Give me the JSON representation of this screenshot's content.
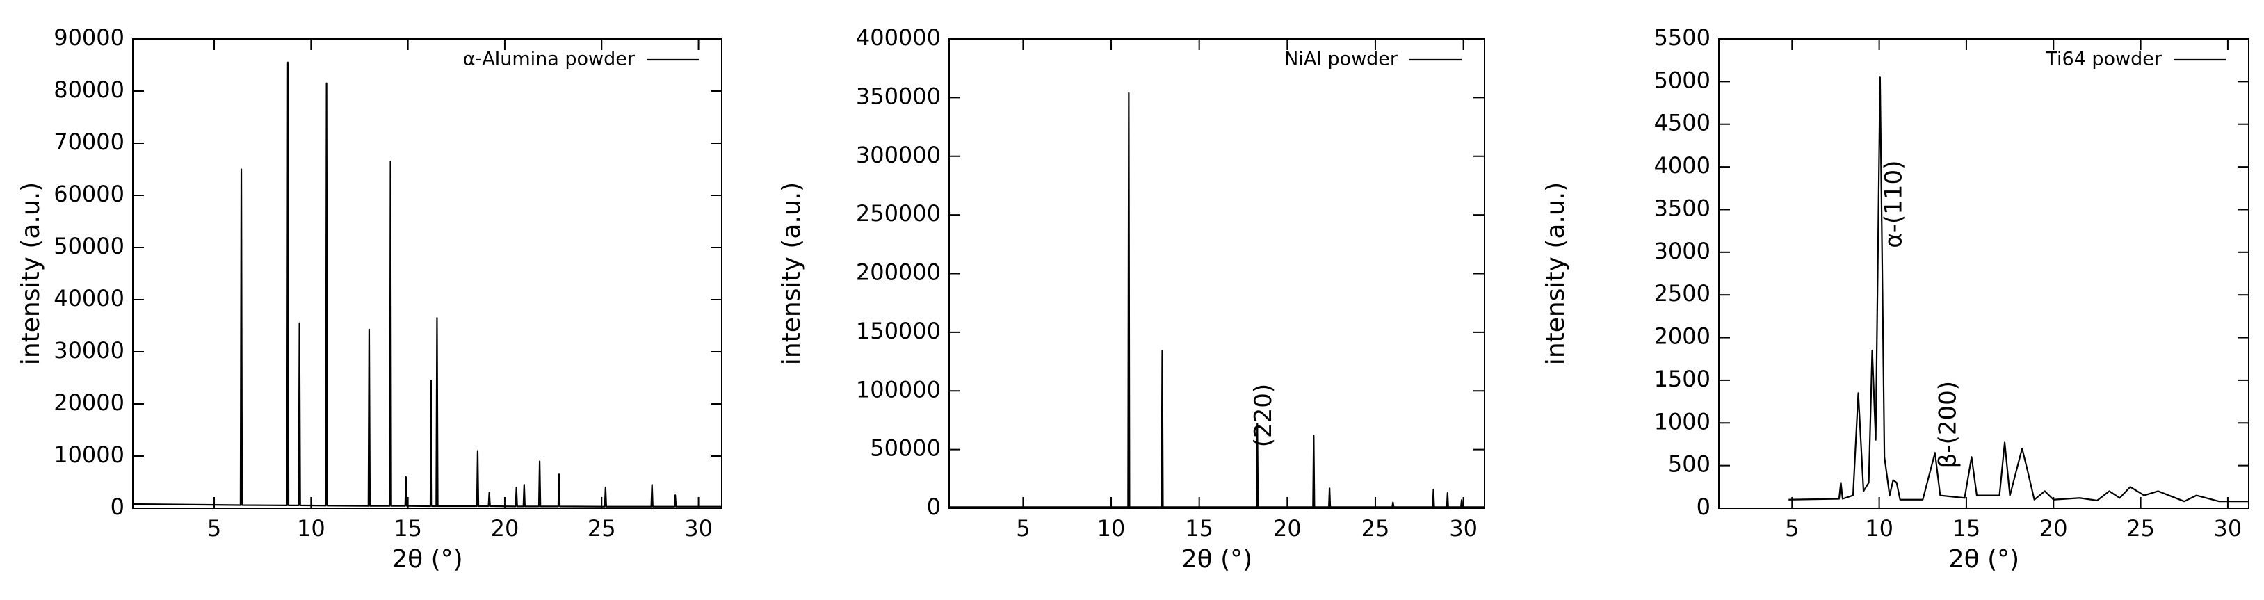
{
  "chart_data": [
    {
      "type": "line",
      "xlabel": "2θ (°)",
      "ylabel": "intensity (a.u.)",
      "xlim": [
        0.8,
        31.2
      ],
      "xticks": [
        5,
        10,
        15,
        20,
        25,
        30
      ],
      "ylim": [
        0,
        90000
      ],
      "yticks": [
        0,
        10000,
        20000,
        30000,
        40000,
        50000,
        60000,
        70000,
        80000,
        90000
      ],
      "legend": "top-right",
      "x": [
        0.8,
        6.36,
        6.4,
        6.44,
        8.76,
        8.8,
        8.84,
        9.36,
        9.4,
        9.44,
        10.76,
        10.8,
        10.84,
        12.96,
        13.0,
        13.04,
        14.06,
        14.1,
        14.14,
        14.86,
        14.9,
        14.94,
        16.16,
        16.2,
        16.24,
        16.46,
        16.5,
        16.54,
        18.56,
        18.6,
        18.64,
        19.16,
        19.2,
        19.24,
        20.56,
        20.6,
        20.64,
        20.96,
        21.0,
        21.04,
        21.76,
        21.8,
        21.84,
        22.76,
        22.8,
        22.84,
        25.16,
        25.2,
        25.24,
        27.56,
        27.6,
        27.64,
        28.76,
        28.8,
        28.84,
        31.2
      ],
      "series": [
        {
          "name": "α-Alumina powder",
          "color": "#000000",
          "values": [
            800,
            600,
            65000,
            600,
            550,
            85500,
            550,
            550,
            35500,
            550,
            500,
            81500,
            500,
            450,
            34300,
            450,
            450,
            66500,
            450,
            450,
            6000,
            450,
            400,
            24500,
            400,
            400,
            36500,
            400,
            400,
            11000,
            400,
            400,
            3000,
            400,
            350,
            4000,
            350,
            350,
            4500,
            350,
            350,
            9000,
            350,
            350,
            6500,
            350,
            300,
            4000,
            300,
            300,
            4500,
            300,
            300,
            2500,
            300,
            300
          ]
        }
      ]
    },
    {
      "type": "line",
      "xlabel": "2θ (°)",
      "ylabel": "intensity (a.u.)",
      "xlim": [
        0.8,
        31.2
      ],
      "xticks": [
        5,
        10,
        15,
        20,
        25,
        30
      ],
      "ylim": [
        0,
        400000
      ],
      "yticks": [
        0,
        50000,
        100000,
        150000,
        200000,
        250000,
        300000,
        350000,
        400000
      ],
      "legend": "top-right",
      "annotations": [
        {
          "text": "(220)",
          "x": 18.7,
          "y": 52000
        }
      ],
      "x": [
        0.8,
        10.96,
        11.0,
        11.04,
        12.86,
        12.9,
        12.94,
        18.26,
        18.3,
        18.34,
        21.46,
        21.5,
        21.54,
        22.36,
        22.4,
        22.44,
        25.96,
        26.0,
        26.04,
        28.26,
        28.3,
        28.34,
        29.06,
        29.1,
        29.14,
        29.86,
        29.9,
        29.94,
        31.2
      ],
      "series": [
        {
          "name": "NiAl powder",
          "color": "#000000",
          "values": [
            1000,
            1000,
            354000,
            1000,
            1000,
            134000,
            1000,
            1000,
            72000,
            1000,
            1000,
            62000,
            1000,
            1000,
            17000,
            1000,
            1000,
            5000,
            1000,
            1000,
            16000,
            1000,
            1000,
            13000,
            1000,
            1000,
            7000,
            1000,
            1000
          ]
        }
      ]
    },
    {
      "type": "line",
      "xlabel": "2θ (°)",
      "ylabel": "intensity (a.u.)",
      "xlim": [
        0.8,
        31.2
      ],
      "xticks": [
        5,
        10,
        15,
        20,
        25,
        30
      ],
      "ylim": [
        0,
        5500
      ],
      "yticks": [
        0,
        500,
        1000,
        1500,
        2000,
        2500,
        3000,
        3500,
        4000,
        4500,
        5000,
        5500
      ],
      "legend": "top-right",
      "annotations": [
        {
          "text": "α-(110)",
          "x": 10.9,
          "y": 3050
        },
        {
          "text": "β-(200)",
          "x": 14.0,
          "y": 470
        }
      ],
      "x": [
        4.8,
        7.7,
        7.8,
        7.9,
        8.5,
        8.8,
        9.1,
        9.4,
        9.6,
        9.8,
        10.05,
        10.3,
        10.6,
        10.8,
        11.0,
        11.2,
        12.5,
        13.2,
        13.5,
        14.9,
        15.3,
        15.6,
        16.9,
        17.2,
        17.5,
        18.2,
        18.5,
        18.9,
        19.5,
        20.0,
        21.5,
        22.5,
        23.2,
        23.8,
        24.4,
        25.2,
        26.0,
        27.5,
        28.2,
        29.5,
        31.2
      ],
      "series": [
        {
          "name": "Ti64 powder",
          "color": "#000000",
          "values": [
            100,
            110,
            300,
            110,
            150,
            1350,
            200,
            300,
            1850,
            800,
            5050,
            600,
            150,
            330,
            300,
            100,
            100,
            650,
            150,
            120,
            600,
            150,
            150,
            770,
            150,
            700,
            450,
            100,
            200,
            100,
            120,
            90,
            200,
            120,
            250,
            150,
            200,
            80,
            150,
            80,
            80
          ]
        }
      ]
    }
  ]
}
